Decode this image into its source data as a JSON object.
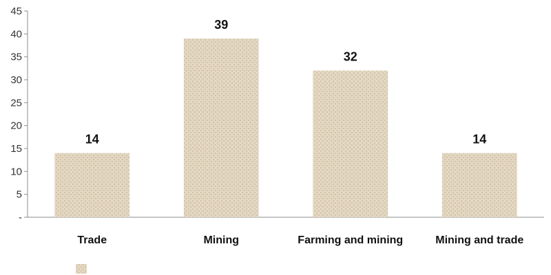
{
  "chart_data": {
    "type": "bar",
    "categories": [
      "Trade",
      "Mining",
      "Farming and mining",
      "Mining and trade"
    ],
    "values": [
      14,
      39,
      32,
      14
    ],
    "data_labels": [
      "14",
      "39",
      "32",
      "14"
    ],
    "y_ticks": [
      0,
      5,
      10,
      15,
      20,
      25,
      30,
      35,
      40,
      45
    ],
    "y_tick_labels": [
      "-",
      "5",
      "10",
      "15",
      "20",
      "25",
      "30",
      "35",
      "40",
      "45"
    ],
    "ylim": [
      0,
      45
    ],
    "grid": false,
    "legend": {
      "position": "bottom-left",
      "entries": [
        ""
      ]
    },
    "colors": {
      "bar_fill": "#e4d8c3",
      "bar_texture": "#cbbb9e",
      "axis": "#8c8c8c"
    }
  }
}
